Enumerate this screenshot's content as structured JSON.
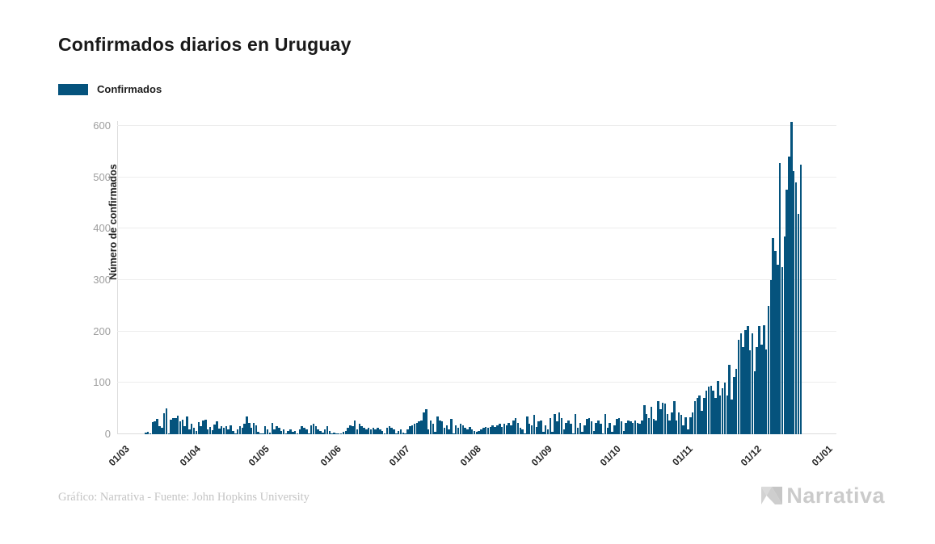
{
  "chart": {
    "title": "Confirmados diarios en Uruguay",
    "legend": [
      {
        "label": "Confirmados",
        "color": "#05537D"
      }
    ],
    "ylabel": "Número de confirmados"
  },
  "footer": {
    "credit": "Gráfico: Narrativa - Fuente: John Hopkins University",
    "logo_text": "Narrativa"
  },
  "chart_data": {
    "type": "bar",
    "title": "Confirmados diarios en Uruguay",
    "xlabel": "",
    "ylabel": "Número de confirmados",
    "legend_entries": [
      "Confirmados"
    ],
    "legend_position": "top-left",
    "bar_color": "#05537D",
    "grid": "horizontal",
    "y_ticks": [
      0,
      100,
      200,
      300,
      400,
      500,
      600
    ],
    "ylim": [
      0,
      609
    ],
    "x_tick_labels": [
      "01/03",
      "01/04",
      "01/05",
      "01/06",
      "01/07",
      "01/08",
      "01/09",
      "01/10",
      "01/11",
      "01/12",
      "01/01"
    ],
    "x_tick_day_offsets": [
      0,
      31,
      61,
      92,
      122,
      153,
      184,
      214,
      245,
      275,
      306
    ],
    "x_axis_span_days": 313,
    "series": [
      {
        "name": "Confirmados",
        "start_day_offset": 12,
        "values": [
          3,
          5,
          1,
          24,
          25,
          30,
          16,
          12,
          41,
          50,
          2,
          29,
          32,
          32,
          36,
          25,
          29,
          16,
          34,
          9,
          21,
          13,
          6,
          24,
          15,
          26,
          29,
          10,
          14,
          8,
          19,
          25,
          11,
          16,
          13,
          15,
          9,
          17,
          7,
          2,
          9,
          15,
          12,
          20,
          35,
          22,
          12,
          22,
          17,
          5,
          1,
          2,
          15,
          9,
          3,
          22,
          9,
          15,
          12,
          7,
          9,
          2,
          7,
          9,
          5,
          7,
          1,
          9,
          15,
          12,
          9,
          2,
          17,
          20,
          15,
          9,
          7,
          3,
          9,
          15,
          7,
          2,
          3,
          2,
          1,
          2,
          5,
          7,
          12,
          17,
          15,
          27,
          9,
          20,
          15,
          12,
          9,
          12,
          9,
          12,
          9,
          12,
          9,
          7,
          2,
          12,
          15,
          12,
          9,
          2,
          7,
          9,
          3,
          2,
          9,
          15,
          17,
          20,
          22,
          25,
          27,
          43,
          48,
          9,
          27,
          20,
          5,
          35,
          27,
          25,
          12,
          17,
          9,
          30,
          2,
          17,
          12,
          20,
          17,
          12,
          9,
          14,
          9,
          7,
          5,
          7,
          9,
          12,
          14,
          12,
          14,
          17,
          14,
          17,
          20,
          14,
          20,
          17,
          22,
          17,
          27,
          32,
          22,
          12,
          9,
          2,
          35,
          20,
          17,
          38,
          14,
          25,
          27,
          5,
          17,
          9,
          32,
          5,
          40,
          25,
          43,
          32,
          9,
          22,
          27,
          20,
          2,
          40,
          12,
          22,
          4,
          17,
          30,
          32,
          25,
          7,
          22,
          27,
          20,
          2,
          40,
          12,
          22,
          4,
          17,
          30,
          32,
          25,
          7,
          22,
          27,
          25,
          22,
          27,
          22,
          20,
          27,
          56,
          40,
          32,
          54,
          30,
          27,
          64,
          48,
          62,
          59,
          40,
          27,
          43,
          64,
          27,
          43,
          38,
          17,
          33,
          9,
          33,
          43,
          64,
          70,
          75,
          46,
          70,
          85,
          93,
          95,
          85,
          70,
          103,
          75,
          90,
          101,
          75,
          135,
          67,
          111,
          127,
          184,
          197,
          169,
          203,
          211,
          164,
          197,
          122,
          169,
          210,
          175,
          212,
          165,
          250,
          300,
          381,
          356,
          330,
          527,
          325,
          385,
          475,
          540,
          608,
          512,
          490,
          428,
          525
        ]
      }
    ]
  }
}
